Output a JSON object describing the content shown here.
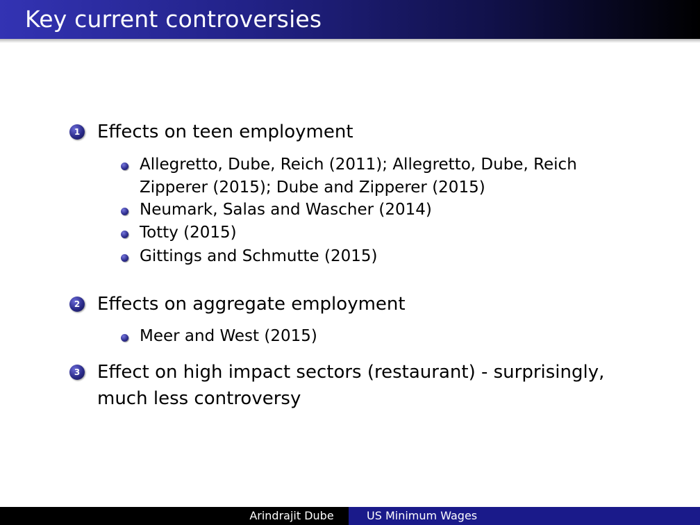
{
  "slide": {
    "title": "Key current controversies"
  },
  "items": [
    {
      "number": "1",
      "text": "Effects on teen employment",
      "subitems": [
        "Allegretto, Dube, Reich (2011); Allegretto, Dube, Reich Zipperer (2015); Dube and Zipperer (2015)",
        "Neumark, Salas and Wascher (2014)",
        "Totty (2015)",
        "Gittings and Schmutte (2015)"
      ]
    },
    {
      "number": "2",
      "text": "Effects on aggregate employment",
      "subitems": [
        "Meer and West (2015)"
      ]
    },
    {
      "number": "3",
      "text": "Effect on high impact sectors (restaurant) - surprisingly, much less controversy",
      "subitems": []
    }
  ],
  "footer": {
    "author": "Arindrajit Dube",
    "title": "US Minimum Wages"
  },
  "colors": {
    "title_bar_start": "#3333b3",
    "title_bar_end": "#000000",
    "footer_title_bg": "#1a1a8a",
    "bullet": "#2b2b8a"
  }
}
